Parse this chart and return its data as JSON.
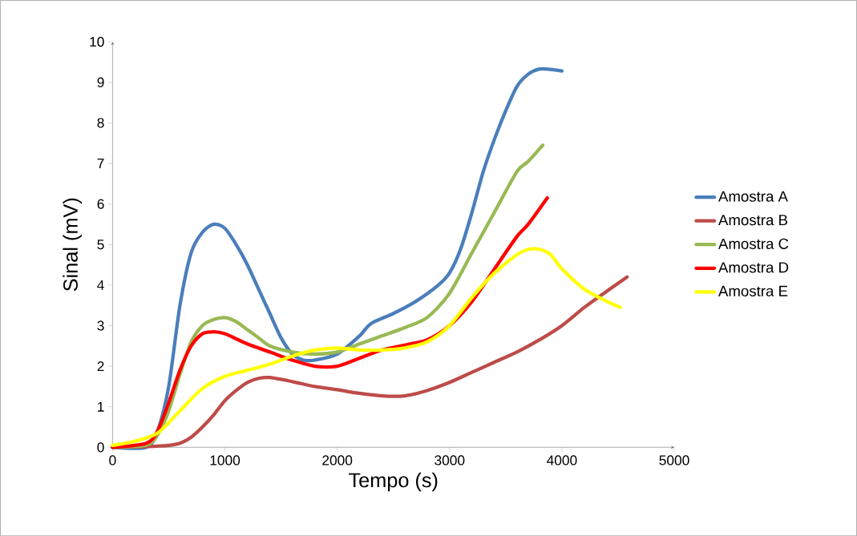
{
  "chart_data": {
    "type": "line",
    "xlabel": "Tempo (s)",
    "ylabel": "Sinal (mV)",
    "xlim": [
      0,
      5000
    ],
    "ylim": [
      0,
      10
    ],
    "xticks": [
      0,
      1000,
      2000,
      3000,
      4000,
      5000
    ],
    "yticks": [
      0,
      1,
      2,
      3,
      4,
      5,
      6,
      7,
      8,
      9,
      10
    ],
    "grid": false,
    "legend": "right",
    "series": [
      {
        "name": "Amostra A",
        "color": "#4a7ebb",
        "x": [
          0,
          300,
          400,
          500,
          600,
          700,
          800,
          900,
          1000,
          1100,
          1200,
          1300,
          1400,
          1500,
          1600,
          1700,
          1800,
          2000,
          2200,
          2300,
          2500,
          2700,
          2900,
          3000,
          3100,
          3200,
          3300,
          3400,
          3500,
          3600,
          3700,
          3800,
          3900,
          4000
        ],
        "values": [
          0,
          0,
          0.4,
          1.5,
          3.5,
          4.8,
          5.3,
          5.5,
          5.4,
          5.0,
          4.5,
          3.9,
          3.3,
          2.7,
          2.3,
          2.15,
          2.15,
          2.3,
          2.75,
          3.05,
          3.3,
          3.6,
          4.0,
          4.3,
          4.9,
          5.8,
          6.8,
          7.6,
          8.3,
          8.9,
          9.2,
          9.33,
          9.32,
          9.28
        ]
      },
      {
        "name": "Amostra B",
        "color": "#be4b48",
        "x": [
          0,
          300,
          500,
          600,
          700,
          800,
          900,
          1000,
          1100,
          1200,
          1300,
          1400,
          1600,
          1800,
          2000,
          2200,
          2400,
          2600,
          2800,
          3000,
          3200,
          3400,
          3600,
          3800,
          4000,
          4200,
          4400,
          4580
        ],
        "values": [
          0,
          0.02,
          0.05,
          0.1,
          0.25,
          0.5,
          0.8,
          1.15,
          1.4,
          1.6,
          1.7,
          1.72,
          1.62,
          1.5,
          1.42,
          1.33,
          1.27,
          1.27,
          1.4,
          1.6,
          1.85,
          2.1,
          2.35,
          2.65,
          3.0,
          3.45,
          3.85,
          4.2
        ]
      },
      {
        "name": "Amostra C",
        "color": "#98b954",
        "x": [
          0,
          300,
          400,
          500,
          600,
          700,
          800,
          900,
          1000,
          1100,
          1200,
          1300,
          1400,
          1600,
          1800,
          2000,
          2200,
          2400,
          2600,
          2800,
          3000,
          3200,
          3400,
          3600,
          3700,
          3830
        ],
        "values": [
          0,
          0.05,
          0.3,
          0.9,
          1.8,
          2.6,
          3.0,
          3.15,
          3.2,
          3.1,
          2.9,
          2.7,
          2.5,
          2.35,
          2.3,
          2.35,
          2.55,
          2.75,
          2.95,
          3.2,
          3.8,
          4.8,
          5.8,
          6.8,
          7.05,
          7.45
        ]
      },
      {
        "name": "Amostra D",
        "color": "#ff0000",
        "x": [
          0,
          300,
          400,
          500,
          600,
          700,
          800,
          900,
          1000,
          1200,
          1400,
          1600,
          1800,
          2000,
          2200,
          2400,
          2600,
          2800,
          3000,
          3200,
          3400,
          3600,
          3700,
          3870
        ],
        "values": [
          0,
          0.1,
          0.4,
          1.1,
          1.9,
          2.5,
          2.8,
          2.85,
          2.8,
          2.55,
          2.35,
          2.15,
          2.0,
          2.0,
          2.2,
          2.4,
          2.52,
          2.65,
          3.0,
          3.6,
          4.4,
          5.2,
          5.5,
          6.15
        ]
      },
      {
        "name": "Amostra E",
        "color": "#ffff00",
        "x": [
          0,
          200,
          400,
          600,
          800,
          1000,
          1200,
          1400,
          1600,
          1800,
          2000,
          2200,
          2400,
          2600,
          2800,
          3000,
          3200,
          3400,
          3600,
          3700,
          3800,
          3900,
          4000,
          4200,
          4400,
          4520
        ],
        "values": [
          0.05,
          0.15,
          0.35,
          0.9,
          1.45,
          1.75,
          1.9,
          2.05,
          2.25,
          2.4,
          2.45,
          2.4,
          2.4,
          2.45,
          2.6,
          3.0,
          3.7,
          4.3,
          4.75,
          4.88,
          4.88,
          4.75,
          4.4,
          3.9,
          3.6,
          3.45
        ]
      }
    ]
  }
}
